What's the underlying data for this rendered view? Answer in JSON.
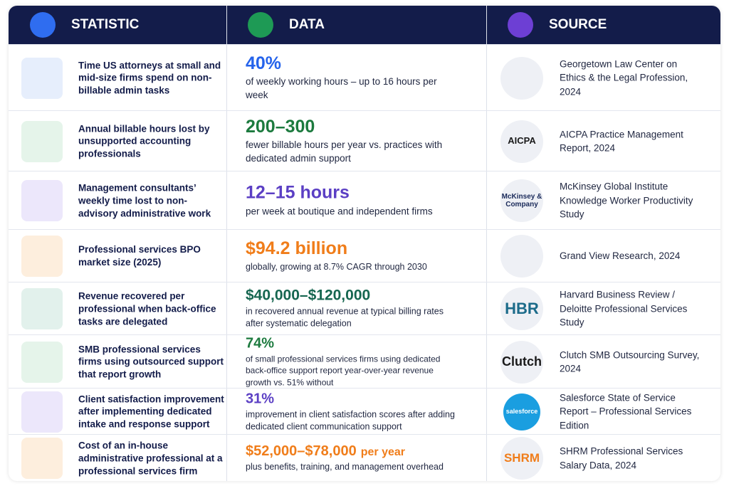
{
  "header": {
    "columns": [
      "STATISTIC",
      "DATA",
      "SOURCE"
    ]
  },
  "rows": [
    {
      "statistic": "Time US attorneys at small and mid-size firms spend on non-billable admin tasks",
      "figure": "40%",
      "description": "of weekly working hours – up to 16 hours per week",
      "source": "Georgetown Law Center on Ethics & the Legal Profession, 2024"
    },
    {
      "statistic": "Annual billable hours lost by unsupported accounting professionals",
      "figure": "200–300",
      "description": "fewer billable hours per year vs. practices with dedicated admin support",
      "source": "AICPA Practice Management Report, 2024",
      "logo": "AICPA"
    },
    {
      "statistic": "Management consultants’ weekly time lost to non-advisory administrative work",
      "figure": "12–15 hours",
      "description": "per week at boutique and independent firms",
      "source": "McKinsey Global Institute Knowledge Worker Productivity Study",
      "logo": "McKinsey & Company"
    },
    {
      "statistic": "Professional services BPO market size (2025)",
      "figure": "$94.2 billion",
      "description": "globally, growing at 8.7% CAGR through 2030",
      "source": "Grand View Research, 2024"
    },
    {
      "statistic": "Revenue recovered per professional when back-office tasks are delegated",
      "figure": "$40,000–$120,000",
      "description": "in recovered annual revenue at typical billing rates after systematic delegation",
      "source": "Harvard Business Review / Deloitte Professional Services Study",
      "logo": "HBR"
    },
    {
      "statistic": "SMB professional services firms using outsourced support that report growth",
      "figure": "74%",
      "description": "of small professional services firms using dedicated back-office support report year-over-year revenue growth vs. 51% without",
      "source": "Clutch SMB Outsourcing Survey, 2024",
      "logo": "Clutch"
    },
    {
      "statistic": "Client satisfaction improvement after implementing dedicated intake and response support",
      "figure": "31%",
      "description": "improvement in client satisfaction scores after adding dedicated client communication support",
      "source": "Salesforce State of Service Report – Professional Services Edition",
      "logo": "salesforce"
    },
    {
      "statistic": "Cost of an in-house administrative professional at a professional services firm",
      "figure": "$52,000–$78,000",
      "figure_suffix": "per year",
      "description": "plus benefits, training, and management overhead",
      "source": "SHRM Professional Services Salary Data, 2024",
      "logo": "SHRM"
    }
  ]
}
